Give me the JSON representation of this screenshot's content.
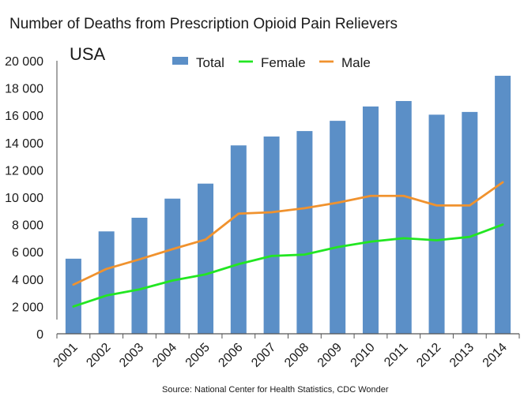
{
  "chart_data": {
    "type": "bar",
    "title": "Number of Deaths from Prescription Opioid Pain Relievers",
    "subtitle": "USA",
    "source": "Source: National Center for Health Statistics, CDC Wonder",
    "xlabel": "",
    "ylabel": "",
    "ylim": [
      0,
      20000
    ],
    "yticks": [
      0,
      2000,
      4000,
      6000,
      8000,
      10000,
      12000,
      14000,
      16000,
      18000,
      20000
    ],
    "ytick_labels": [
      "0",
      "2 000",
      "4 000",
      "6 000",
      "8 000",
      "10 000",
      "12 000",
      "14 000",
      "16 000",
      "18 000",
      "20 000"
    ],
    "categories": [
      "2001",
      "2002",
      "2003",
      "2004",
      "2005",
      "2006",
      "2007",
      "2008",
      "2009",
      "2010",
      "2011",
      "2012",
      "2013",
      "2014"
    ],
    "grid": false,
    "legend_position": "top-center",
    "series": [
      {
        "name": "Total",
        "type": "bar",
        "color": "#5b8fc7",
        "values": [
          5500,
          7500,
          8500,
          9900,
          11000,
          13800,
          14450,
          14850,
          15600,
          16650,
          17050,
          16050,
          16250,
          18900
        ]
      },
      {
        "name": "Female",
        "type": "line",
        "color": "#22e622",
        "values": [
          2000,
          2800,
          3250,
          3900,
          4350,
          5100,
          5700,
          5800,
          6350,
          6750,
          7000,
          6850,
          7100,
          8000
        ]
      },
      {
        "name": "Male",
        "type": "line",
        "color": "#f0922e",
        "values": [
          3600,
          4750,
          5450,
          6200,
          6900,
          8800,
          8900,
          9200,
          9600,
          10100,
          10100,
          9400,
          9400,
          11100
        ]
      }
    ]
  }
}
